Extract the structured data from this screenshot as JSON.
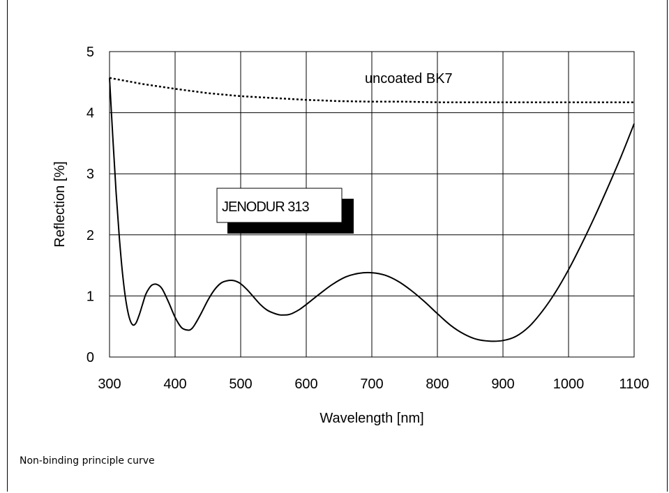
{
  "footnote": "Non-binding principle curve",
  "chart_data": {
    "type": "line",
    "xlabel": "Wavelength [nm]",
    "ylabel": "Reflection [%]",
    "xlim": [
      300,
      1100
    ],
    "ylim": [
      0,
      5
    ],
    "xticks": [
      300,
      400,
      500,
      600,
      700,
      800,
      900,
      1000,
      1100
    ],
    "yticks": [
      0,
      1,
      2,
      3,
      4,
      5
    ],
    "grid": true,
    "series": [
      {
        "name": "uncoated BK7",
        "style": "dotted",
        "color": "#000000",
        "x": [
          300,
          350,
          400,
          450,
          500,
          550,
          600,
          650,
          700,
          750,
          800,
          850,
          900,
          950,
          1000,
          1050,
          1100
        ],
        "y": [
          4.57,
          4.47,
          4.39,
          4.32,
          4.27,
          4.24,
          4.21,
          4.19,
          4.18,
          4.18,
          4.17,
          4.17,
          4.17,
          4.17,
          4.17,
          4.17,
          4.17
        ]
      },
      {
        "name": "JENODUR 313",
        "style": "solid",
        "color": "#000000",
        "x": [
          300,
          305,
          310,
          315,
          320,
          325,
          330,
          335,
          340,
          345,
          350,
          355,
          360,
          365,
          372,
          380,
          390,
          400,
          410,
          420,
          425,
          430,
          440,
          450,
          460,
          470,
          480,
          490,
          500,
          510,
          520,
          530,
          540,
          550,
          560,
          570,
          575,
          580,
          590,
          600,
          620,
          640,
          660,
          680,
          700,
          720,
          740,
          760,
          780,
          800,
          820,
          840,
          860,
          880,
          900,
          920,
          940,
          960,
          980,
          1000,
          1020,
          1040,
          1060,
          1080,
          1100
        ],
        "y": [
          4.57,
          3.6,
          2.7,
          1.95,
          1.35,
          0.92,
          0.65,
          0.53,
          0.55,
          0.68,
          0.85,
          1.02,
          1.12,
          1.18,
          1.19,
          1.12,
          0.9,
          0.65,
          0.48,
          0.44,
          0.46,
          0.53,
          0.72,
          0.93,
          1.1,
          1.21,
          1.25,
          1.25,
          1.2,
          1.1,
          0.98,
          0.86,
          0.77,
          0.72,
          0.69,
          0.69,
          0.7,
          0.72,
          0.78,
          0.86,
          1.03,
          1.19,
          1.31,
          1.37,
          1.38,
          1.34,
          1.24,
          1.09,
          0.91,
          0.71,
          0.52,
          0.38,
          0.29,
          0.26,
          0.27,
          0.34,
          0.5,
          0.75,
          1.06,
          1.43,
          1.85,
          2.3,
          2.78,
          3.28,
          3.82
        ]
      }
    ],
    "annotations": [
      "uncoated BK7",
      "JENODUR 313"
    ]
  }
}
